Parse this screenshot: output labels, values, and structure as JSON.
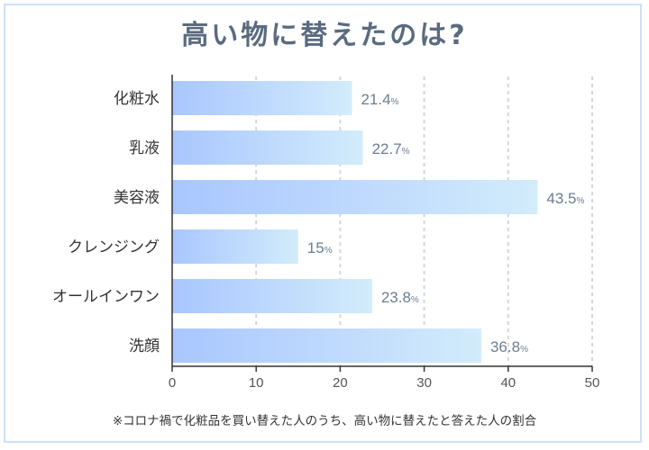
{
  "title": "高い物に替えたのは?",
  "footnote": "※コロナ禍で化粧品を買い替えた人のうち、高い物に替えたと答えた人の割合",
  "colors": {
    "bar_start": "#a9c6ff",
    "bar_end": "#d2ecfb",
    "title": "#5a6b80",
    "value": "#6b7d92"
  },
  "chart_data": {
    "type": "bar",
    "orientation": "horizontal",
    "categories": [
      "化粧水",
      "乳液",
      "美容液",
      "クレンジング",
      "オールインワン",
      "洗顔"
    ],
    "values": [
      21.4,
      22.7,
      43.5,
      15,
      23.8,
      36.8
    ],
    "value_suffix": "%",
    "xlim": [
      0,
      50
    ],
    "xticks": [
      0,
      10,
      20,
      30,
      40,
      50
    ],
    "grid": "dashed vertical"
  }
}
